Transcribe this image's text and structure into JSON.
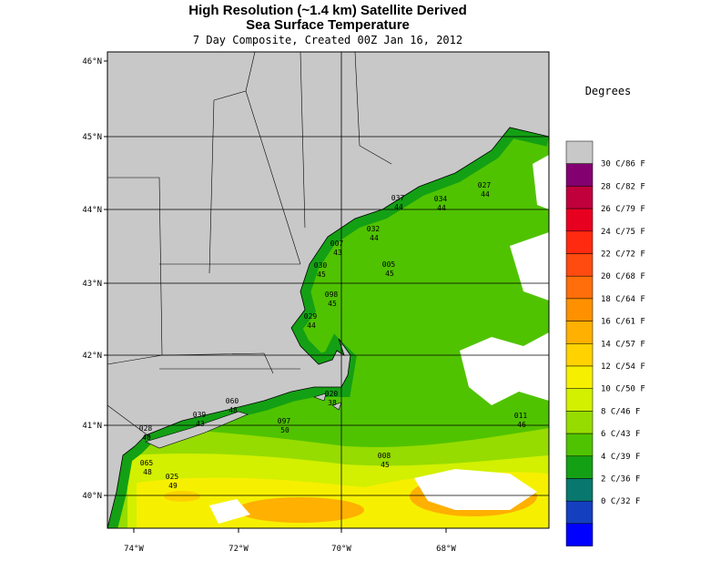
{
  "header": {
    "title": "High Resolution (~1.4 km) Satellite Derived",
    "subtitle": "Sea Surface Temperature",
    "caption": "7 Day Composite, Created 00Z Jan 16, 2012"
  },
  "map": {
    "latitude_labels": [
      "46°N",
      "45°N",
      "44°N",
      "43°N",
      "42°N",
      "41°N",
      "40°N"
    ],
    "longitude_labels": [
      "74°W",
      "72°W",
      "70°W",
      "68°W"
    ],
    "stations": [
      {
        "id": "037",
        "temp": 44
      },
      {
        "id": "034",
        "temp": 44
      },
      {
        "id": "027",
        "temp": 44
      },
      {
        "id": "032",
        "temp": 44
      },
      {
        "id": "007",
        "temp": 43
      },
      {
        "id": "005",
        "temp": 45
      },
      {
        "id": "030",
        "temp": 45
      },
      {
        "id": "098",
        "temp": 45
      },
      {
        "id": "029",
        "temp": 44
      },
      {
        "id": "020",
        "temp": 38
      },
      {
        "id": "060",
        "temp": 48
      },
      {
        "id": "039",
        "temp": 43
      },
      {
        "id": "097",
        "temp": 50
      },
      {
        "id": "011",
        "temp": 46
      },
      {
        "id": "028",
        "temp": 40
      },
      {
        "id": "008",
        "temp": 45
      },
      {
        "id": "065",
        "temp": 48
      },
      {
        "id": "025",
        "temp": 49
      }
    ]
  },
  "legend": {
    "title": "Degrees",
    "labels": [
      "30 C/86 F",
      "28 C/82 F",
      "26 C/79 F",
      "24 C/75 F",
      "22 C/72 F",
      "20 C/68 F",
      "18 C/64 F",
      "16 C/61 F",
      "14 C/57 F",
      "12 C/54 F",
      "10 C/50 F",
      "8 C/46 F",
      "6 C/43 F",
      "4 C/39 F",
      "2 C/36 F",
      "0 C/32 F"
    ],
    "colors": [
      "#c8c8c8",
      "#820070",
      "#c0003c",
      "#e80020",
      "#ff2a10",
      "#ff4a10",
      "#ff6e0a",
      "#ff9000",
      "#ffb000",
      "#ffd200",
      "#f6f000",
      "#d2f000",
      "#96dc00",
      "#50c300",
      "#14a014",
      "#08786e",
      "#1440c0",
      "#0000ff"
    ]
  }
}
